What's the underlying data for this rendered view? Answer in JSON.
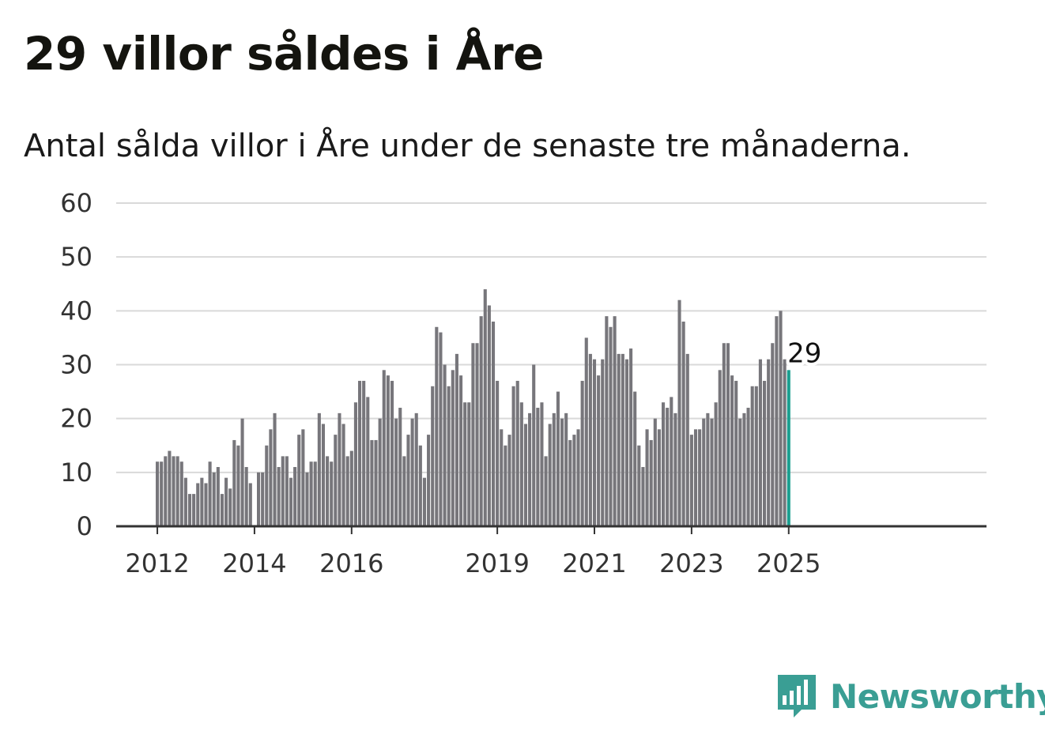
{
  "title": "29 villor såldes i Åre",
  "subtitle": "Antal sålda villor i Åre under de senaste tre månaderna.",
  "brand": {
    "name": "Newsworthy",
    "color": "#3a9e94",
    "icon": "newsworthy-logo-icon"
  },
  "colors": {
    "bar": "#77767b",
    "highlight": "#1a9e8f",
    "grid": "#d9d9d9",
    "axis": "#333333"
  },
  "chart_data": {
    "type": "bar",
    "x_start": "2012-01",
    "x_end": "2025-01",
    "frequency": "monthly",
    "xticks": [
      "2012",
      "2014",
      "2016",
      "2019",
      "2021",
      "2023",
      "2025"
    ],
    "yticks": [
      "0",
      "10",
      "20",
      "30",
      "40",
      "50",
      "60"
    ],
    "ylim": [
      0,
      60
    ],
    "grid": true,
    "highlight_label": "29",
    "values": [
      12,
      12,
      13,
      14,
      13,
      13,
      12,
      9,
      6,
      6,
      8,
      9,
      8,
      12,
      10,
      11,
      6,
      9,
      7,
      16,
      15,
      20,
      11,
      8,
      null,
      10,
      10,
      15,
      18,
      21,
      11,
      13,
      13,
      9,
      11,
      17,
      18,
      10,
      12,
      12,
      21,
      19,
      13,
      12,
      17,
      21,
      19,
      13,
      14,
      23,
      27,
      27,
      24,
      16,
      16,
      20,
      29,
      28,
      27,
      20,
      22,
      13,
      17,
      20,
      21,
      15,
      9,
      17,
      26,
      37,
      36,
      30,
      26,
      29,
      32,
      28,
      23,
      23,
      34,
      34,
      39,
      44,
      41,
      38,
      27,
      18,
      15,
      17,
      26,
      27,
      23,
      19,
      21,
      30,
      22,
      23,
      13,
      19,
      21,
      25,
      20,
      21,
      16,
      17,
      18,
      27,
      35,
      32,
      31,
      28,
      31,
      39,
      37,
      39,
      32,
      32,
      31,
      33,
      25,
      15,
      11,
      18,
      16,
      20,
      18,
      23,
      22,
      24,
      21,
      42,
      38,
      32,
      17,
      18,
      18,
      20,
      21,
      20,
      23,
      29,
      34,
      34,
      28,
      27,
      20,
      21,
      22,
      26,
      26,
      31,
      27,
      31,
      34,
      39,
      40,
      31,
      29
    ]
  }
}
